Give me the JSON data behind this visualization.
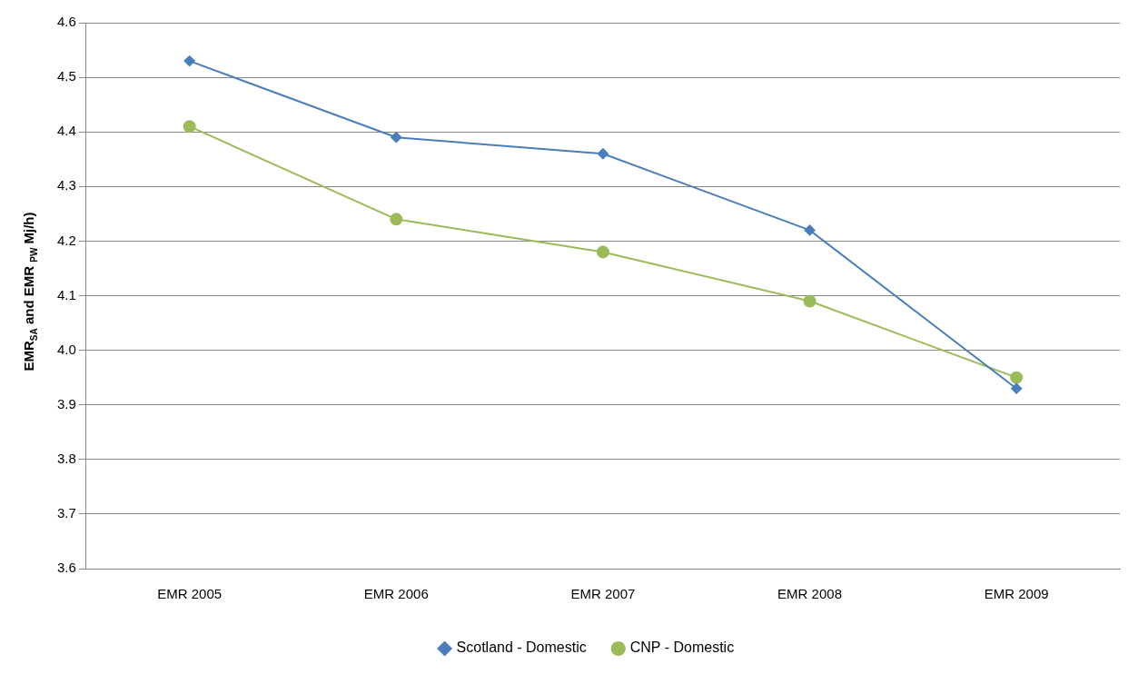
{
  "chart_data": {
    "type": "line",
    "ylabel": "EMR$_{SA}$ and EMR $_{PW}$ Mj/h)",
    "categories": [
      "EMR 2005",
      "EMR 2006",
      "EMR 2007",
      "EMR 2008",
      "EMR 2009"
    ],
    "series": [
      {
        "name": "Scotland - Domestic",
        "color": "#4a7ebb",
        "marker": "diamond",
        "values": [
          4.53,
          4.39,
          4.36,
          4.22,
          3.93
        ]
      },
      {
        "name": "CNP - Domestic",
        "color": "#9bbb59",
        "marker": "circle",
        "values": [
          4.41,
          4.24,
          4.18,
          4.09,
          3.95
        ]
      }
    ],
    "ylim": [
      3.6,
      4.6
    ],
    "yticks": [
      3.6,
      3.7,
      3.8,
      3.9,
      {
        "value": 4,
        "label": "4.0"
      },
      4.1,
      4.2,
      4.3,
      4.4,
      4.5,
      4.6
    ],
    "grid": "y",
    "legend": "bottom",
    "line_style": "solid"
  }
}
